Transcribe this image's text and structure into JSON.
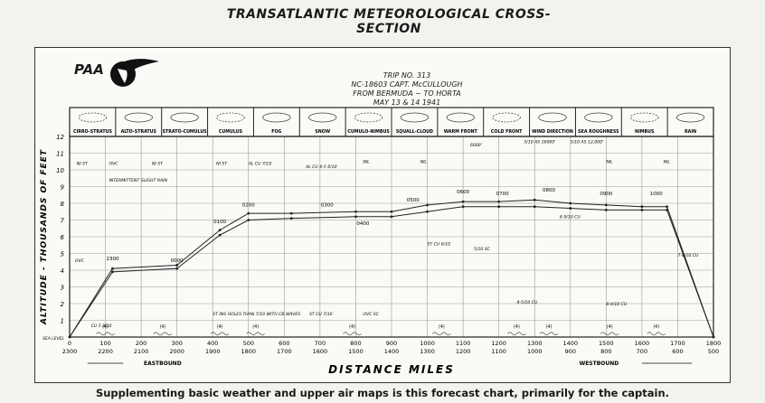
{
  "header": {
    "logo_text": "PAA",
    "title": "TRANSATLANTIC METEOROLOGICAL CROSS-SECTION",
    "trip": "TRIP NO. 313",
    "aircraft": "NC-18603 CAPT. McCULLOUGH",
    "route": "FROM BERMUDA ~ TO HORTA",
    "date": "MAY 13 & 14 1941"
  },
  "legend_boxes": [
    "CIRRO-STRATUS",
    "ALTO-STRATUS",
    "STRATO-CUMULUS",
    "CUMULUS",
    "FOG",
    "SNOW",
    "CUMULO-NIMBUS",
    "SQUALL-CLOUD",
    "WARM FRONT",
    "COLD FRONT",
    "WIND DIRECTION",
    "SEA ROUGHNESS",
    "NIMBUS",
    "RAIN"
  ],
  "legend_extra": {
    "wind_letters": "W  E",
    "sea_num": "(4)"
  },
  "caption": "Supplementing basic weather and upper air maps is this forecast chart, primarily for the captain.",
  "chart_data": {
    "type": "line",
    "title": "TRANSATLANTIC METEOROLOGICAL CROSS-SECTION",
    "xlabel": "DISTANCE MILES",
    "ylabel": "ALTITUDE - THOUSANDS OF FEET",
    "x_ticks_top": [
      "0",
      "100",
      "200",
      "300",
      "400",
      "500",
      "600",
      "700",
      "800",
      "900",
      "1000",
      "1100",
      "1200",
      "1300",
      "1400",
      "1500",
      "1600",
      "1700",
      "1800"
    ],
    "x_ticks_bottom": [
      "2300",
      "2200",
      "2100",
      "2000",
      "1900",
      "1800",
      "1700",
      "1600",
      "1500",
      "1400",
      "1300",
      "1200",
      "1100",
      "1000",
      "900",
      "800",
      "700",
      "600",
      "500"
    ],
    "y_ticks": [
      "SEA LEVEL",
      "1",
      "2",
      "3",
      "4",
      "5",
      "6",
      "7",
      "8",
      "9",
      "10",
      "11",
      "12"
    ],
    "ylim": [
      0,
      12
    ],
    "xlim": [
      0,
      1800
    ],
    "grid": true,
    "direction_left": "EASTBOUND",
    "direction_right": "WESTBOUND",
    "series": [
      {
        "x": [
          0,
          120,
          300,
          420,
          500,
          620,
          800,
          900,
          1000,
          1100,
          1200,
          1300,
          1400,
          1500,
          1600,
          1670,
          1800
        ],
        "y": [
          0,
          3.9,
          4.1,
          6.1,
          7.0,
          7.1,
          7.2,
          7.2,
          7.5,
          7.8,
          7.8,
          7.8,
          7.7,
          7.6,
          7.6,
          7.6,
          0
        ]
      },
      {
        "x": [
          0,
          120,
          300,
          420,
          500,
          620,
          800,
          900,
          1000,
          1100,
          1200,
          1300,
          1400,
          1500,
          1600,
          1670,
          1800
        ],
        "y": [
          0,
          4.1,
          4.3,
          6.4,
          7.4,
          7.4,
          7.5,
          7.5,
          7.9,
          8.1,
          8.1,
          8.2,
          8.0,
          7.9,
          7.8,
          7.8,
          0
        ]
      }
    ],
    "time_labels": [
      {
        "x": 300,
        "y": 4.5,
        "t": "0000"
      },
      {
        "x": 420,
        "y": 6.8,
        "t": "0100"
      },
      {
        "x": 500,
        "y": 7.8,
        "t": "0200"
      },
      {
        "x": 720,
        "y": 7.8,
        "t": "0300"
      },
      {
        "x": 820,
        "y": 6.7,
        "t": "0400"
      },
      {
        "x": 960,
        "y": 8.1,
        "t": "0500"
      },
      {
        "x": 1100,
        "y": 8.6,
        "t": "0600"
      },
      {
        "x": 1210,
        "y": 8.5,
        "t": "0700"
      },
      {
        "x": 1340,
        "y": 8.7,
        "t": "0800"
      },
      {
        "x": 1500,
        "y": 8.5,
        "t": "0900"
      },
      {
        "x": 1640,
        "y": 8.5,
        "t": "1000"
      },
      {
        "x": 120,
        "y": 4.6,
        "t": "2300"
      }
    ],
    "annotations": [
      {
        "x": 20,
        "y": 10.3,
        "t": "NI ST"
      },
      {
        "x": 110,
        "y": 10.3,
        "t": "OVC"
      },
      {
        "x": 230,
        "y": 10.3,
        "t": "NI ST"
      },
      {
        "x": 410,
        "y": 10.3,
        "t": "NI ST"
      },
      {
        "x": 500,
        "y": 10.3,
        "t": "AL CU 7/10"
      },
      {
        "x": 660,
        "y": 10.1,
        "t": "AL CU 4-5 6/10"
      },
      {
        "x": 820,
        "y": 10.4,
        "t": "NIL"
      },
      {
        "x": 980,
        "y": 10.4,
        "t": "NIL"
      },
      {
        "x": 1120,
        "y": 11.4,
        "t": "6000'"
      },
      {
        "x": 1270,
        "y": 11.6,
        "t": "5/10 AS 16000'"
      },
      {
        "x": 1400,
        "y": 11.6,
        "t": "5/10 AS 12,000'"
      },
      {
        "x": 1500,
        "y": 10.4,
        "t": "NIL"
      },
      {
        "x": 1660,
        "y": 10.4,
        "t": "NIL"
      },
      {
        "x": 110,
        "y": 9.3,
        "t": "INTERMITTENT SLIGHT RAIN"
      },
      {
        "x": 15,
        "y": 4.5,
        "t": "OVC"
      },
      {
        "x": 1000,
        "y": 5.5,
        "t": "ST CU 6/10"
      },
      {
        "x": 1130,
        "y": 5.2,
        "t": "5/10 SC"
      },
      {
        "x": 1370,
        "y": 7.1,
        "t": "8-9/10 CU"
      },
      {
        "x": 1700,
        "y": 4.8,
        "t": "7-8/10 CU"
      },
      {
        "x": 1250,
        "y": 2.0,
        "t": "4-5/10 CU"
      },
      {
        "x": 1500,
        "y": 1.9,
        "t": "8-9/10 CU"
      },
      {
        "x": 400,
        "y": 1.3,
        "t": "ST INS HOLES THAN 7/10 WITH CB WAVES"
      },
      {
        "x": 670,
        "y": 1.3,
        "t": "ST CU 7/10"
      },
      {
        "x": 820,
        "y": 1.3,
        "t": "OVC SC"
      },
      {
        "x": 60,
        "y": 0.6,
        "t": "CU 5 3/10"
      }
    ],
    "sea_roughness": [
      {
        "x": 100,
        "t": "(4)"
      },
      {
        "x": 260,
        "t": "(4)"
      },
      {
        "x": 420,
        "t": "(4)"
      },
      {
        "x": 520,
        "t": "(4)"
      },
      {
        "x": 790,
        "t": "(4)"
      },
      {
        "x": 1040,
        "t": "(4)"
      },
      {
        "x": 1250,
        "t": "(4)"
      },
      {
        "x": 1340,
        "t": "(4)"
      },
      {
        "x": 1510,
        "t": "(4)"
      },
      {
        "x": 1640,
        "t": "(4)"
      }
    ]
  }
}
